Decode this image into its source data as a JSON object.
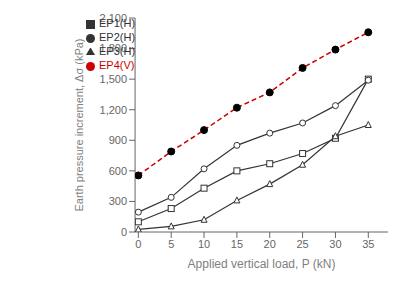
{
  "chart_data": {
    "type": "line",
    "x": [
      0,
      5,
      10,
      15,
      20,
      25,
      30,
      35
    ],
    "series": [
      {
        "name": "EP1(H)",
        "color": "#333333",
        "marker": "square",
        "line_style": "solid",
        "values": [
          100,
          230,
          430,
          600,
          670,
          770,
          920,
          1500
        ]
      },
      {
        "name": "EP2(H)",
        "color": "#333333",
        "marker": "circle",
        "line_style": "solid",
        "values": [
          195,
          340,
          620,
          850,
          970,
          1070,
          1240,
          1490
        ]
      },
      {
        "name": "EP3(H)",
        "color": "#333333",
        "marker": "triangle",
        "line_style": "solid",
        "values": [
          25,
          55,
          120,
          310,
          470,
          660,
          940,
          1050
        ]
      },
      {
        "name": "EP4(V)",
        "color": "#cc0000",
        "marker": "filled_circle",
        "line_style": "dashed",
        "values": [
          555,
          790,
          1000,
          1220,
          1370,
          1610,
          1790,
          1960
        ]
      }
    ],
    "xlabel": "Applied vertical load, P (kN)",
    "ylabel": "Earth pressure increment, Δσ (kPa)",
    "xlim": [
      -0.5,
      38
    ],
    "ylim": [
      0,
      2100
    ],
    "xticks": [
      0,
      5,
      10,
      15,
      20,
      25,
      30,
      35
    ],
    "yticks": [
      0,
      300,
      600,
      900,
      {
        "value": 1200,
        "label": "1,200"
      },
      {
        "value": 1500,
        "label": "1,500"
      },
      {
        "value": 1800,
        "label": "1,800"
      },
      {
        "value": 2100,
        "label": "2,100"
      }
    ],
    "grid": false,
    "legend": "upper left"
  }
}
